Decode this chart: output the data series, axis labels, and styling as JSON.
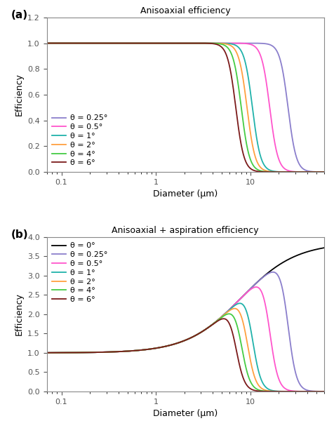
{
  "title_a": "Anisoaxial efficiency",
  "title_b": "Anisoaxial + aspiration efficiency",
  "ylabel": "Efficiency",
  "xlabel": "Diameter (μm)",
  "panel_a_label": "(a)",
  "panel_b_label": "(b)",
  "ylim_a": [
    0.0,
    1.2
  ],
  "ylim_b": [
    0.0,
    4.0
  ],
  "xlim": [
    0.07,
    60
  ],
  "yticks_a": [
    0.0,
    0.2,
    0.4,
    0.6,
    0.8,
    1.0,
    1.2
  ],
  "yticks_b": [
    0.0,
    0.5,
    1.0,
    1.5,
    2.0,
    2.5,
    3.0,
    3.5,
    4.0
  ],
  "angles_a": [
    0.25,
    0.5,
    1.0,
    2.0,
    4.0,
    6.0
  ],
  "angles_b": [
    0.0,
    0.25,
    0.5,
    1.0,
    2.0,
    4.0,
    6.0
  ],
  "colors_a": [
    "#8b7fcc",
    "#ff55cc",
    "#20b2aa",
    "#ffa040",
    "#44cc44",
    "#7b1a1a"
  ],
  "colors_b": [
    "#000000",
    "#8b7fcc",
    "#ff55cc",
    "#20b2aa",
    "#ffa040",
    "#44cc44",
    "#7b1a1a"
  ],
  "legend_labels_a": [
    "θ = 0.25°",
    "θ = 0.5°",
    "θ = 1°",
    "θ = 2°",
    "θ = 4°",
    "θ = 6°"
  ],
  "legend_labels_b": [
    "θ = 0°",
    "θ = 0.25°",
    "θ = 0.5°",
    "θ = 1°",
    "θ = 2°",
    "θ = 4°",
    "θ = 6°"
  ],
  "D50_a": [
    25.0,
    16.0,
    10.5,
    9.2,
    8.0,
    7.0
  ],
  "D50_b_aniso": [
    10000000000.0,
    25.0,
    16.0,
    10.5,
    9.2,
    8.0,
    7.0
  ],
  "steepness": 10
}
